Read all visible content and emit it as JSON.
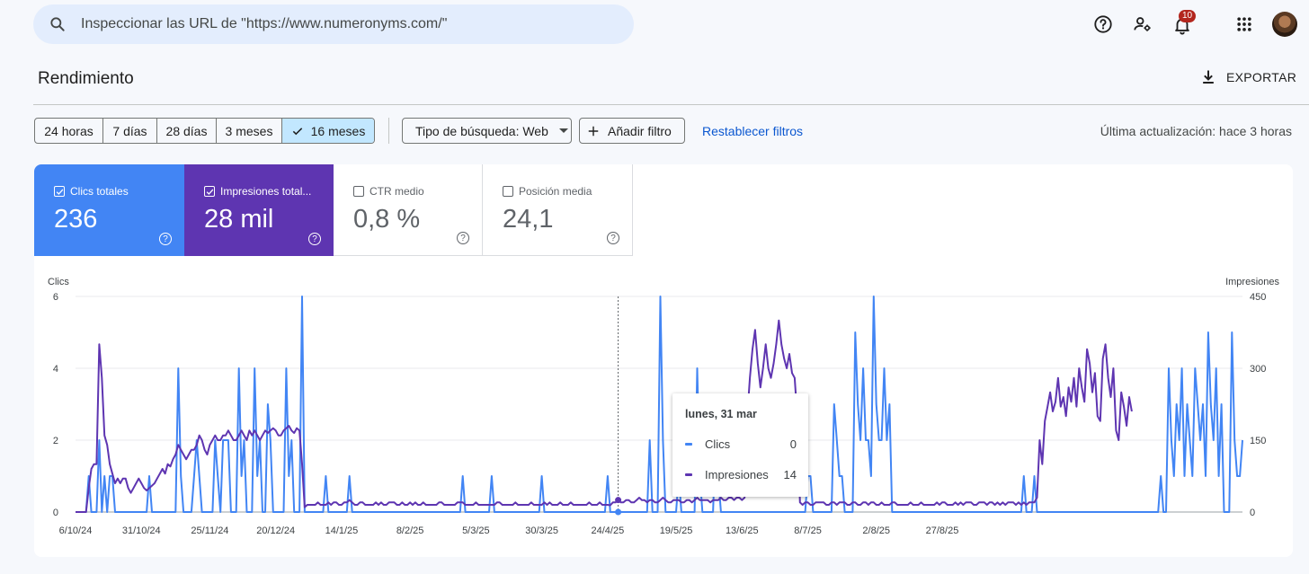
{
  "search": {
    "placeholder": "Inspeccionar las URL de \"https://www.numeronyms.com/\""
  },
  "header": {
    "notification_count": "10",
    "icons": [
      "help-icon",
      "manage-users-icon",
      "notifications-icon",
      "apps-icon",
      "avatar"
    ]
  },
  "page": {
    "title": "Rendimiento",
    "export_label": "EXPORTAR"
  },
  "filters": {
    "ranges": [
      "24 horas",
      "7 días",
      "28 días",
      "3 meses",
      "16 meses"
    ],
    "selected_range": "16 meses",
    "search_type": "Tipo de búsqueda: Web",
    "add_filter": "Añadir filtro",
    "reset": "Restablecer filtros",
    "last_update": "Última actualización: hace 3 horas"
  },
  "metrics": [
    {
      "label": "Clics totales",
      "value": "236",
      "checked": true,
      "color": "#4285f4"
    },
    {
      "label": "Impresiones total...",
      "value": "28 mil",
      "checked": true,
      "color": "#5e35b1"
    },
    {
      "label": "CTR medio",
      "value": "0,8 %",
      "checked": false
    },
    {
      "label": "Posición media",
      "value": "24,1",
      "checked": false
    }
  ],
  "tooltip": {
    "date": "lunes, 31 mar",
    "rows": [
      {
        "label": "Clics",
        "value": "0",
        "color": "#4285f4"
      },
      {
        "label": "Impresiones",
        "value": "14",
        "color": "#5e35b1"
      }
    ]
  },
  "chart_data": {
    "type": "line",
    "left_axis_label": "Clics",
    "right_axis_label": "Impresiones",
    "left_ticks": [
      "0",
      "2",
      "4",
      "6"
    ],
    "right_ticks": [
      "0",
      "150",
      "300",
      "450"
    ],
    "left_range": [
      0,
      6
    ],
    "right_range": [
      0,
      450
    ],
    "x_labels": [
      "6/10/24",
      "31/10/24",
      "25/11/24",
      "20/12/24",
      "14/1/25",
      "8/2/25",
      "5/3/25",
      "30/3/25",
      "24/4/25",
      "19/5/25",
      "13/6/25",
      "8/7/25",
      "2/8/25",
      "27/8/25"
    ],
    "series": [
      {
        "name": "Clics",
        "color": "#4285f4",
        "axis": "left",
        "values": [
          0,
          0,
          0,
          0,
          0,
          1,
          0,
          0,
          0,
          2,
          0,
          1,
          0,
          1,
          1,
          0,
          0,
          0,
          0,
          0,
          0,
          0,
          0,
          0,
          0,
          0,
          0,
          0,
          1,
          0,
          0,
          0,
          0,
          0,
          0,
          0,
          0,
          0,
          0,
          4,
          1,
          0,
          0,
          0,
          0,
          1,
          2,
          1,
          0,
          0,
          0,
          0,
          0,
          2,
          1,
          0,
          2,
          2,
          2,
          0,
          0,
          0,
          4,
          1,
          2,
          0,
          0,
          0,
          4,
          1,
          2,
          0,
          0,
          3,
          2,
          0,
          0,
          0,
          0,
          0,
          4,
          1,
          2,
          0,
          0,
          0,
          6,
          0,
          0,
          0,
          0,
          0,
          0,
          0,
          0,
          1,
          0,
          0,
          0,
          0,
          0,
          0,
          0,
          0,
          1,
          0,
          0,
          0,
          0,
          0,
          0,
          0,
          0,
          0,
          0,
          0,
          0,
          0,
          0,
          0,
          0,
          0,
          0,
          0,
          0,
          0,
          0,
          0,
          0,
          0,
          0,
          0,
          0,
          0,
          0,
          0,
          0,
          0,
          0,
          0,
          0,
          0,
          0,
          0,
          0,
          0,
          0,
          1,
          0,
          0,
          0,
          0,
          0,
          0,
          0,
          0,
          0,
          0,
          1,
          0,
          0,
          0,
          0,
          0,
          0,
          0,
          0,
          0,
          0,
          0,
          0,
          0,
          0,
          0,
          0,
          0,
          0,
          1,
          0,
          0,
          0,
          0,
          0,
          0,
          0,
          0,
          0,
          0,
          0,
          0,
          0,
          0,
          0,
          0,
          0,
          0,
          0,
          0,
          0,
          0,
          0,
          0,
          1,
          0,
          0,
          0,
          0,
          0,
          0,
          0,
          0,
          0,
          0,
          0,
          0,
          0,
          0,
          0,
          2,
          0,
          0,
          0,
          6,
          2,
          0,
          0,
          0,
          0,
          0,
          1,
          0,
          0,
          0,
          0,
          0,
          0,
          4,
          1,
          0,
          0,
          0,
          0,
          0,
          2,
          1,
          0,
          0,
          0,
          0,
          0,
          0,
          0,
          0,
          0,
          0,
          0,
          0,
          0,
          0,
          0,
          0,
          0,
          0,
          0,
          0,
          0,
          0,
          0,
          0,
          0,
          0,
          0,
          0,
          0,
          0,
          0,
          0,
          0,
          1,
          1,
          0,
          0,
          0,
          0,
          0,
          0,
          0,
          0,
          3,
          2,
          1,
          1,
          0,
          0,
          0,
          0,
          5,
          3,
          2,
          4,
          2,
          2,
          1,
          6,
          3,
          2,
          2,
          4,
          2,
          3,
          0,
          0,
          0,
          0,
          0,
          0,
          0,
          0,
          0,
          0,
          0,
          0,
          0,
          0,
          0,
          0,
          0,
          0,
          0,
          0,
          0,
          0,
          0,
          0,
          0,
          0,
          0,
          0,
          0,
          0,
          0,
          0,
          0,
          0,
          0,
          0,
          0,
          0,
          0,
          0,
          0,
          0,
          0,
          0,
          0,
          0,
          0,
          0,
          0,
          0,
          1,
          0,
          0,
          0,
          1,
          0,
          0,
          0,
          0,
          0,
          0,
          0,
          0,
          0,
          0,
          0,
          0,
          0,
          0,
          0,
          0,
          0,
          0,
          0,
          0,
          0,
          0,
          0,
          0,
          0,
          0,
          0,
          0,
          0,
          0,
          0,
          0,
          0,
          0,
          0,
          0,
          0,
          0,
          0,
          0,
          0,
          0,
          0,
          0,
          0,
          0,
          0,
          1,
          0,
          0,
          4,
          2,
          1,
          3,
          2,
          4,
          1,
          3,
          2,
          1,
          4,
          3,
          2,
          3,
          1,
          5,
          3,
          2,
          4,
          1,
          3,
          0,
          0,
          0,
          5,
          2,
          1,
          1,
          2
        ]
      },
      {
        "name": "Impresiones",
        "color": "#5e35b1",
        "axis": "right",
        "values": [
          0,
          0,
          0,
          0,
          0,
          50,
          90,
          100,
          100,
          350,
          280,
          160,
          140,
          100,
          80,
          60,
          70,
          60,
          70,
          70,
          50,
          40,
          50,
          60,
          70,
          60,
          50,
          45,
          50,
          55,
          60,
          70,
          80,
          90,
          80,
          100,
          95,
          110,
          120,
          140,
          130,
          120,
          110,
          120,
          130,
          130,
          140,
          160,
          150,
          130,
          120,
          140,
          150,
          160,
          150,
          150,
          160,
          160,
          170,
          160,
          150,
          150,
          160,
          170,
          160,
          150,
          170,
          160,
          170,
          160,
          150,
          160,
          170,
          165,
          170,
          175,
          170,
          160,
          160,
          170,
          175,
          180,
          170,
          165,
          175,
          170,
          100,
          10,
          15,
          15,
          15,
          15,
          20,
          15,
          15,
          15,
          20,
          15,
          20,
          20,
          15,
          15,
          20,
          20,
          25,
          20,
          15,
          15,
          20,
          20,
          15,
          15,
          15,
          15,
          20,
          15,
          20,
          15,
          15,
          20,
          20,
          20,
          15,
          15,
          20,
          15,
          15,
          20,
          15,
          20,
          15,
          15,
          20,
          15,
          15,
          15,
          15,
          15,
          20,
          20,
          15,
          15,
          15,
          15,
          15,
          20,
          20,
          20,
          15,
          15,
          15,
          15,
          20,
          15,
          15,
          15,
          15,
          15,
          15,
          15,
          20,
          20,
          15,
          15,
          15,
          15,
          15,
          20,
          15,
          15,
          15,
          15,
          15,
          20,
          15,
          15,
          15,
          15,
          20,
          15,
          20,
          15,
          15,
          15,
          20,
          15,
          15,
          15,
          20,
          15,
          15,
          15,
          15,
          15,
          15,
          20,
          15,
          15,
          15,
          20,
          15,
          15,
          15,
          14,
          20,
          20,
          25,
          20,
          20,
          25,
          25,
          20,
          20,
          25,
          30,
          25,
          25,
          20,
          25,
          25,
          20,
          20,
          25,
          30,
          25,
          20,
          20,
          25,
          25,
          25,
          20,
          20,
          25,
          25,
          20,
          25,
          30,
          25,
          25,
          25,
          25,
          20,
          25,
          25,
          25,
          30,
          25,
          25,
          30,
          30,
          25,
          30,
          30,
          25,
          30,
          200,
          280,
          340,
          380,
          310,
          260,
          300,
          350,
          300,
          280,
          310,
          350,
          400,
          350,
          320,
          300,
          330,
          290,
          280,
          200,
          20,
          15,
          20,
          20,
          15,
          15,
          20,
          20,
          20,
          20,
          15,
          15,
          20,
          20,
          15,
          20,
          20,
          20,
          15,
          15,
          20,
          20,
          15,
          15,
          20,
          20,
          15,
          20,
          20,
          15,
          15,
          20,
          15,
          15,
          15,
          20,
          20,
          15,
          15,
          15,
          15,
          15,
          20,
          15,
          15,
          15,
          20,
          15,
          15,
          15,
          15,
          15,
          20,
          15,
          20,
          20,
          15,
          15,
          15,
          20,
          15,
          20,
          15,
          20,
          20,
          20,
          15,
          15,
          20,
          20,
          20,
          15,
          20,
          20,
          15,
          20,
          15,
          20,
          15,
          20,
          20,
          20,
          15,
          20,
          15,
          20,
          15,
          20,
          20,
          20,
          30,
          150,
          100,
          190,
          220,
          250,
          210,
          230,
          280,
          220,
          240,
          200,
          260,
          230,
          280,
          220,
          300,
          260,
          230,
          340,
          310,
          250,
          290,
          200,
          190,
          320,
          350,
          280,
          240,
          300,
          170,
          150,
          250,
          220,
          180,
          240,
          210
        ]
      }
    ],
    "hover_index": 206
  }
}
